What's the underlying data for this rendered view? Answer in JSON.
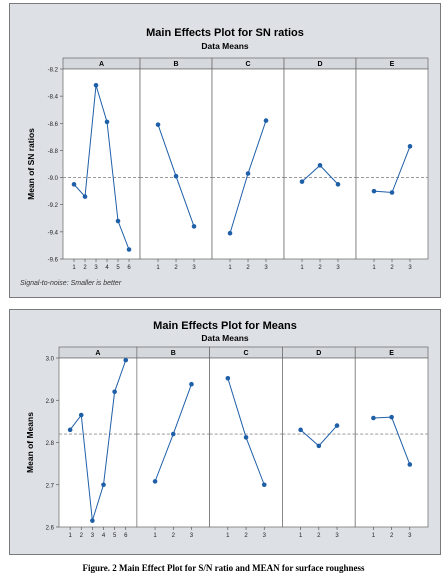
{
  "caption": "Figure. 2 Main Effect Plot for S/N ratio and MEAN for surface roughness",
  "chart_data": [
    {
      "type": "line",
      "title": "Main Effects Plot for SN ratios",
      "subtitle": "Data Means",
      "ylabel": "Mean of SN ratios",
      "footnote": "Signal-to-noise: Smaller is better",
      "ylim": [
        -9.6,
        -8.2
      ],
      "yticks": [
        -8.2,
        -8.4,
        -8.6,
        -8.8,
        -9.0,
        -9.2,
        -9.4,
        -9.6
      ],
      "ytick_labels": [
        "-8.2",
        "-8.4",
        "-8.6",
        "-8.8",
        "-9.0",
        "-9.2",
        "-9.4",
        "-9.6"
      ],
      "reference_line": -9.0,
      "panels": [
        {
          "name": "A",
          "x": [
            "1",
            "2",
            "3",
            "4",
            "5",
            "6"
          ],
          "values": [
            -9.05,
            -9.14,
            -8.32,
            -8.59,
            -9.32,
            -9.53
          ]
        },
        {
          "name": "B",
          "x": [
            "1",
            "2",
            "3"
          ],
          "values": [
            -8.61,
            -8.99,
            -9.36
          ]
        },
        {
          "name": "C",
          "x": [
            "1",
            "2",
            "3"
          ],
          "values": [
            -9.41,
            -8.97,
            -8.58
          ]
        },
        {
          "name": "D",
          "x": [
            "1",
            "2",
            "3"
          ],
          "values": [
            -9.03,
            -8.91,
            -9.05
          ]
        },
        {
          "name": "E",
          "x": [
            "1",
            "2",
            "3"
          ],
          "values": [
            -9.1,
            -9.11,
            -8.77
          ]
        }
      ],
      "line_color": "#1f5fa8",
      "ref_color": "#8c8c8c"
    },
    {
      "type": "line",
      "title": "Main Effects Plot for Means",
      "subtitle": "Data Means",
      "ylabel": "Mean of Means",
      "ylim": [
        2.6,
        3.0
      ],
      "yticks": [
        2.6,
        2.7,
        2.8,
        2.9,
        3.0
      ],
      "ytick_labels": [
        "2.6",
        "2.7",
        "2.8",
        "2.9",
        "3.0"
      ],
      "reference_line": 2.82,
      "panels": [
        {
          "name": "A",
          "x": [
            "1",
            "2",
            "3",
            "4",
            "5",
            "6"
          ],
          "values": [
            2.83,
            2.865,
            2.615,
            2.7,
            2.92,
            2.995
          ]
        },
        {
          "name": "B",
          "x": [
            "1",
            "2",
            "3"
          ],
          "values": [
            2.708,
            2.82,
            2.938
          ]
        },
        {
          "name": "C",
          "x": [
            "1",
            "2",
            "3"
          ],
          "values": [
            2.952,
            2.812,
            2.7
          ]
        },
        {
          "name": "D",
          "x": [
            "1",
            "2",
            "3"
          ],
          "values": [
            2.83,
            2.792,
            2.84
          ]
        },
        {
          "name": "E",
          "x": [
            "1",
            "2",
            "3"
          ],
          "values": [
            2.858,
            2.86,
            2.748
          ]
        }
      ],
      "line_color": "#1f5fa8",
      "ref_color": "#8c8c8c"
    }
  ]
}
